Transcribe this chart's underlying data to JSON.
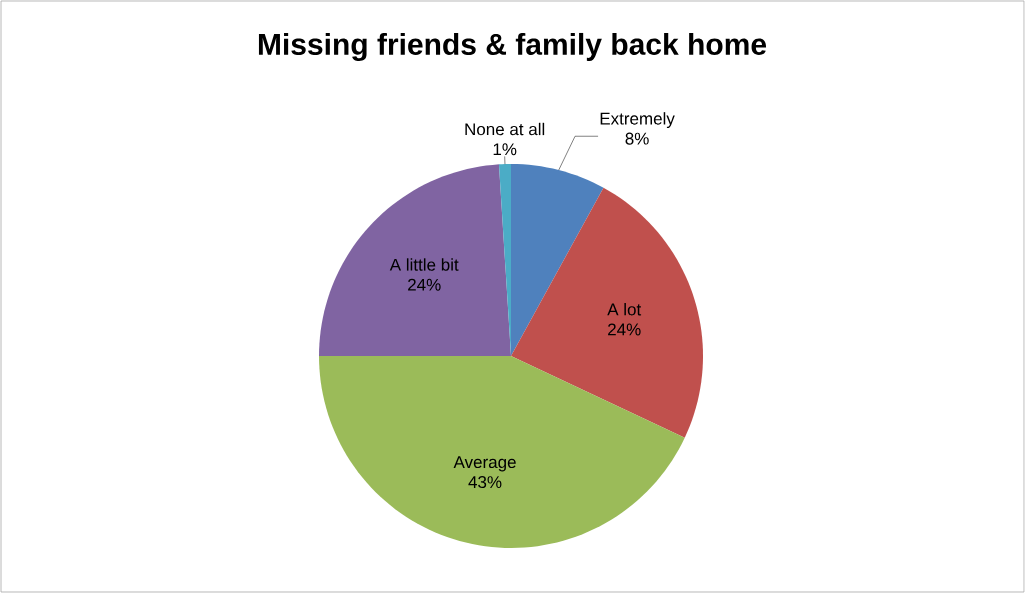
{
  "chart_data": {
    "type": "pie",
    "title": "Missing friends & family back home",
    "categories": [
      "Extremely",
      "A lot",
      "Average",
      "A little bit",
      "None at all"
    ],
    "values": [
      8,
      24,
      43,
      24,
      1
    ],
    "value_labels": [
      "8%",
      "24%",
      "43%",
      "24%",
      "1%"
    ],
    "colors": [
      "#4f81bd",
      "#c0504d",
      "#9bbb59",
      "#8064a2",
      "#4bacc6"
    ]
  }
}
